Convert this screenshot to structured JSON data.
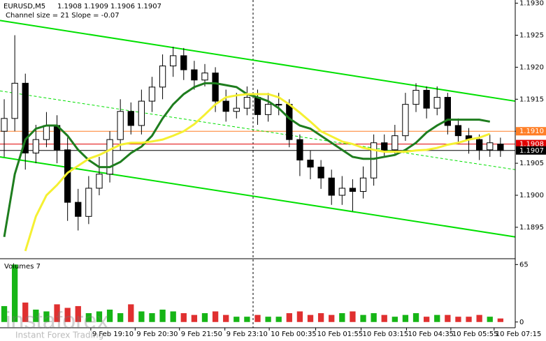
{
  "chart_data": {
    "type": "candlestick",
    "title": "EURUSD,M5",
    "subtitle": "Channel size = 21 Slope = -0.07",
    "volume_label": "Volumes 7",
    "watermark": "instaforex",
    "watermark_sub": "Instant Forex Trading",
    "open": [
      1.191,
      1.1912,
      1.19175,
      1.19066,
      1.19087,
      1.19109,
      1.19071,
      1.18989,
      1.18967,
      1.19011,
      1.19033,
      1.19087,
      1.19131,
      1.19109,
      1.19147,
      1.19169,
      1.19202,
      1.19218,
      1.19196,
      1.1918,
      1.19191,
      1.19147,
      1.19131,
      1.19136,
      1.19153,
      1.19126,
      1.19142,
      1.19142,
      1.19087,
      1.19055,
      1.19044,
      1.19027,
      1.19,
      1.19011,
      1.19006,
      1.19027,
      1.19082,
      1.19071,
      1.19093,
      1.19142,
      1.19164,
      1.19136,
      1.19153,
      1.19109,
      1.19093,
      1.19087,
      1.19071,
      1.1908
    ],
    "high": [
      1.1915,
      1.1925,
      1.1919,
      1.1911,
      1.1913,
      1.19125,
      1.1909,
      1.1901,
      1.1903,
      1.1906,
      1.191,
      1.1915,
      1.19145,
      1.19165,
      1.19185,
      1.1922,
      1.19232,
      1.1923,
      1.1921,
      1.19205,
      1.192,
      1.19165,
      1.1916,
      1.1917,
      1.19165,
      1.1916,
      1.1916,
      1.1915,
      1.19095,
      1.1907,
      1.19055,
      1.1904,
      1.1903,
      1.19025,
      1.19045,
      1.19095,
      1.19095,
      1.1911,
      1.1916,
      1.19175,
      1.1917,
      1.1917,
      1.1916,
      1.1912,
      1.19105,
      1.19095,
      1.19095,
      1.1909
    ],
    "low": [
      1.1906,
      1.191,
      1.1904,
      1.1905,
      1.19075,
      1.1905,
      1.1896,
      1.18945,
      1.18955,
      1.19,
      1.1902,
      1.1907,
      1.19095,
      1.19095,
      1.1913,
      1.1915,
      1.19185,
      1.1918,
      1.19165,
      1.1917,
      1.1913,
      1.19115,
      1.1912,
      1.19125,
      1.1911,
      1.19115,
      1.19125,
      1.19075,
      1.1903,
      1.19025,
      1.1901,
      1.18985,
      1.18985,
      1.18975,
      1.18995,
      1.19015,
      1.1906,
      1.19065,
      1.19085,
      1.1913,
      1.1912,
      1.19125,
      1.19095,
      1.1908,
      1.19065,
      1.19055,
      1.1906,
      1.1906
    ],
    "close": [
      1.1912,
      1.19175,
      1.19066,
      1.19087,
      1.19109,
      1.19071,
      1.18989,
      1.18967,
      1.19011,
      1.19033,
      1.19087,
      1.19131,
      1.19109,
      1.19147,
      1.19169,
      1.19202,
      1.19218,
      1.19196,
      1.1918,
      1.19191,
      1.19147,
      1.19131,
      1.19136,
      1.19153,
      1.19126,
      1.19142,
      1.19142,
      1.19087,
      1.19055,
      1.19044,
      1.19027,
      1.19,
      1.19011,
      1.19006,
      1.19027,
      1.19082,
      1.19071,
      1.19093,
      1.19142,
      1.19164,
      1.19136,
      1.19153,
      1.19109,
      1.19093,
      1.19087,
      1.19071,
      1.19082,
      1.1907
    ],
    "volumes": [
      18,
      65,
      22,
      14,
      12,
      20,
      16,
      18,
      10,
      12,
      14,
      10,
      20,
      12,
      10,
      14,
      12,
      10,
      8,
      10,
      12,
      8,
      6,
      6,
      8,
      6,
      6,
      10,
      12,
      8,
      10,
      8,
      10,
      12,
      8,
      10,
      8,
      6,
      8,
      10,
      6,
      8,
      8,
      6,
      6,
      8,
      6,
      4
    ],
    "indicators": [
      {
        "color": "#1e7d1e",
        "values": [
          1.18935,
          1.19033,
          1.19087,
          1.19104,
          1.19109,
          1.19109,
          1.19093,
          1.19071,
          1.19055,
          1.19044,
          1.19044,
          1.19052,
          1.19066,
          1.19076,
          1.19093,
          1.1912,
          1.19142,
          1.19158,
          1.19169,
          1.19175,
          1.19175,
          1.19172,
          1.19169,
          1.19158,
          1.19153,
          1.19147,
          1.19136,
          1.1912,
          1.19109,
          1.19104,
          1.19093,
          1.19082,
          1.19071,
          1.1906,
          1.19057,
          1.19057,
          1.1906,
          1.19063,
          1.19071,
          1.19082,
          1.19098,
          1.19109,
          1.19118,
          1.19118,
          1.19118,
          1.19118,
          1.19115,
          null
        ]
      },
      {
        "color": "#f5f032",
        "values": [
          null,
          null,
          1.18913,
          1.18967,
          1.19,
          1.19016,
          1.19035,
          1.19046,
          1.19057,
          1.19063,
          1.19071,
          1.19079,
          1.19082,
          1.19082,
          1.19084,
          1.19087,
          1.19093,
          1.191,
          1.19111,
          1.19126,
          1.19142,
          1.19153,
          1.19156,
          1.19158,
          1.19158,
          1.19158,
          1.19153,
          1.19142,
          1.19129,
          1.19115,
          1.191,
          1.19092,
          1.19084,
          1.1908,
          1.19074,
          1.19071,
          1.19068,
          1.19068,
          1.19068,
          1.1907,
          1.19071,
          1.19074,
          1.19079,
          1.19082,
          1.19087,
          1.1909,
          1.19096,
          null
        ]
      }
    ],
    "channel": {
      "color": "#00e000",
      "upper": [
        1.19273,
        1.19147
      ],
      "middle": [
        1.19163,
        1.1904
      ],
      "lower": [
        1.1906,
        1.18935
      ]
    },
    "price_lines": [
      {
        "value": 1.191,
        "label": "1.1910",
        "color": "#ff7f27"
      },
      {
        "value": 1.1908,
        "color": "#e00000"
      },
      {
        "value": 1.1907,
        "color": "#000000"
      }
    ],
    "ylim": [
      1.18902,
      1.19305
    ],
    "yticks": [
      {
        "value": 1.193,
        "label": "1.1930"
      },
      1.1925,
      {
        "value": 1.192,
        "label": "1.1920"
      },
      1.1915,
      {
        "value": 1.191,
        "label": "1.1910"
      },
      1.1905,
      {
        "value": 1.19,
        "label": "1.1900"
      },
      1.1895
    ],
    "xlim": [
      -0.4,
      48.4
    ],
    "xticks": [
      {
        "value": 8.2,
        "label": "9 Feb 19:10"
      },
      {
        "value": 12.4,
        "label": "9 Feb 20:30"
      },
      {
        "value": 16.6,
        "label": "9 Feb 21:50"
      },
      {
        "value": 20.9,
        "label": "9 Feb 23:10"
      },
      {
        "value": 25.1,
        "label": "10 Feb 00:35"
      },
      {
        "value": 29.5,
        "label": "10 Feb 01:55"
      },
      {
        "value": 33.8,
        "label": "10 Feb 03:15"
      },
      {
        "value": 38.1,
        "label": "10 Feb 04:35"
      },
      {
        "value": 42.3,
        "label": "10 Feb 05:55"
      },
      {
        "value": 46.4,
        "label": "10 Feb 07:15"
      }
    ],
    "vlim": [
      -6.5,
      70
    ],
    "vticks": [
      65,
      0
    ]
  }
}
